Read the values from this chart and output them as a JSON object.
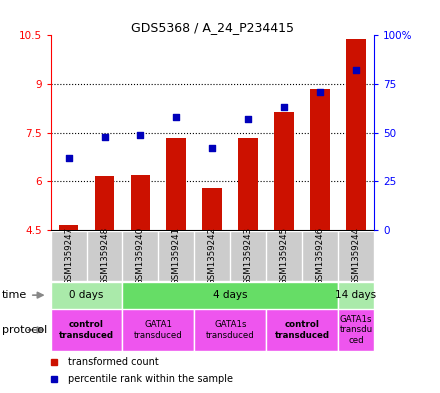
{
  "title": "GDS5368 / A_24_P234415",
  "samples": [
    "GSM1359247",
    "GSM1359248",
    "GSM1359240",
    "GSM1359241",
    "GSM1359242",
    "GSM1359243",
    "GSM1359245",
    "GSM1359246",
    "GSM1359244"
  ],
  "transformed_count": [
    4.65,
    6.15,
    6.2,
    7.35,
    5.8,
    7.35,
    8.15,
    8.85,
    10.4
  ],
  "percentile_rank": [
    37,
    48,
    49,
    58,
    42,
    57,
    63,
    71,
    82
  ],
  "ylim_left": [
    4.5,
    10.5
  ],
  "ylim_right": [
    0,
    100
  ],
  "yticks_left": [
    4.5,
    6.0,
    7.5,
    9.0,
    10.5
  ],
  "ytick_labels_left": [
    "4.5",
    "6",
    "7.5",
    "9",
    "10.5"
  ],
  "ytick_labels_right": [
    "0",
    "25",
    "50",
    "75",
    "100%"
  ],
  "ytick_labels_right_vals": [
    "0",
    "25",
    "50",
    "75",
    "100%"
  ],
  "yticks_right": [
    0,
    25,
    50,
    75,
    100
  ],
  "bar_color": "#cc1100",
  "dot_color": "#0000bb",
  "bar_bottom": 4.5,
  "time_groups": [
    {
      "label": "0 days",
      "start": 0,
      "end": 2,
      "color": "#aaeaaa"
    },
    {
      "label": "4 days",
      "start": 2,
      "end": 8,
      "color": "#66dd66"
    },
    {
      "label": "14 days",
      "start": 8,
      "end": 9,
      "color": "#aaeaaa"
    }
  ],
  "protocol_groups": [
    {
      "label": "control\ntransduced",
      "start": 0,
      "end": 2,
      "color": "#ee55ee",
      "bold": true
    },
    {
      "label": "GATA1\ntransduced",
      "start": 2,
      "end": 4,
      "color": "#ee55ee",
      "bold": false
    },
    {
      "label": "GATA1s\ntransduced",
      "start": 4,
      "end": 6,
      "color": "#ee55ee",
      "bold": false
    },
    {
      "label": "control\ntransduced",
      "start": 6,
      "end": 8,
      "color": "#ee55ee",
      "bold": true
    },
    {
      "label": "GATA1s\ntransdu\nced",
      "start": 8,
      "end": 9,
      "color": "#ee55ee",
      "bold": false
    }
  ],
  "sample_bg_color": "#cccccc",
  "legend_items": [
    {
      "color": "#cc1100",
      "label": "transformed count"
    },
    {
      "color": "#0000bb",
      "label": "percentile rank within the sample"
    }
  ]
}
